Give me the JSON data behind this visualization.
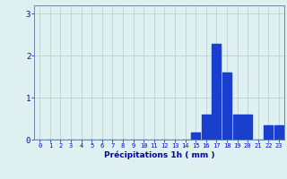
{
  "hours": [
    0,
    1,
    2,
    3,
    4,
    5,
    6,
    7,
    8,
    9,
    10,
    11,
    12,
    13,
    14,
    15,
    16,
    17,
    18,
    19,
    20,
    21,
    22,
    23
  ],
  "values": [
    0,
    0,
    0,
    0,
    0,
    0,
    0,
    0,
    0,
    0,
    0,
    0,
    0,
    0,
    0,
    0.18,
    0.6,
    2.28,
    1.6,
    0.6,
    0.6,
    0,
    0.35,
    0.35
  ],
  "bar_color": "#1a3fcc",
  "background_color": "#dff0f0",
  "grid_color": "#b8cccc",
  "axis_color": "#6688aa",
  "tick_label_color": "#0000bb",
  "xlabel": "Précipitations 1h ( mm )",
  "xlabel_color": "#0000bb",
  "ylim": [
    0,
    3.2
  ],
  "yticks": [
    0,
    1,
    2,
    3
  ],
  "figsize": [
    3.2,
    2.0
  ],
  "dpi": 100
}
